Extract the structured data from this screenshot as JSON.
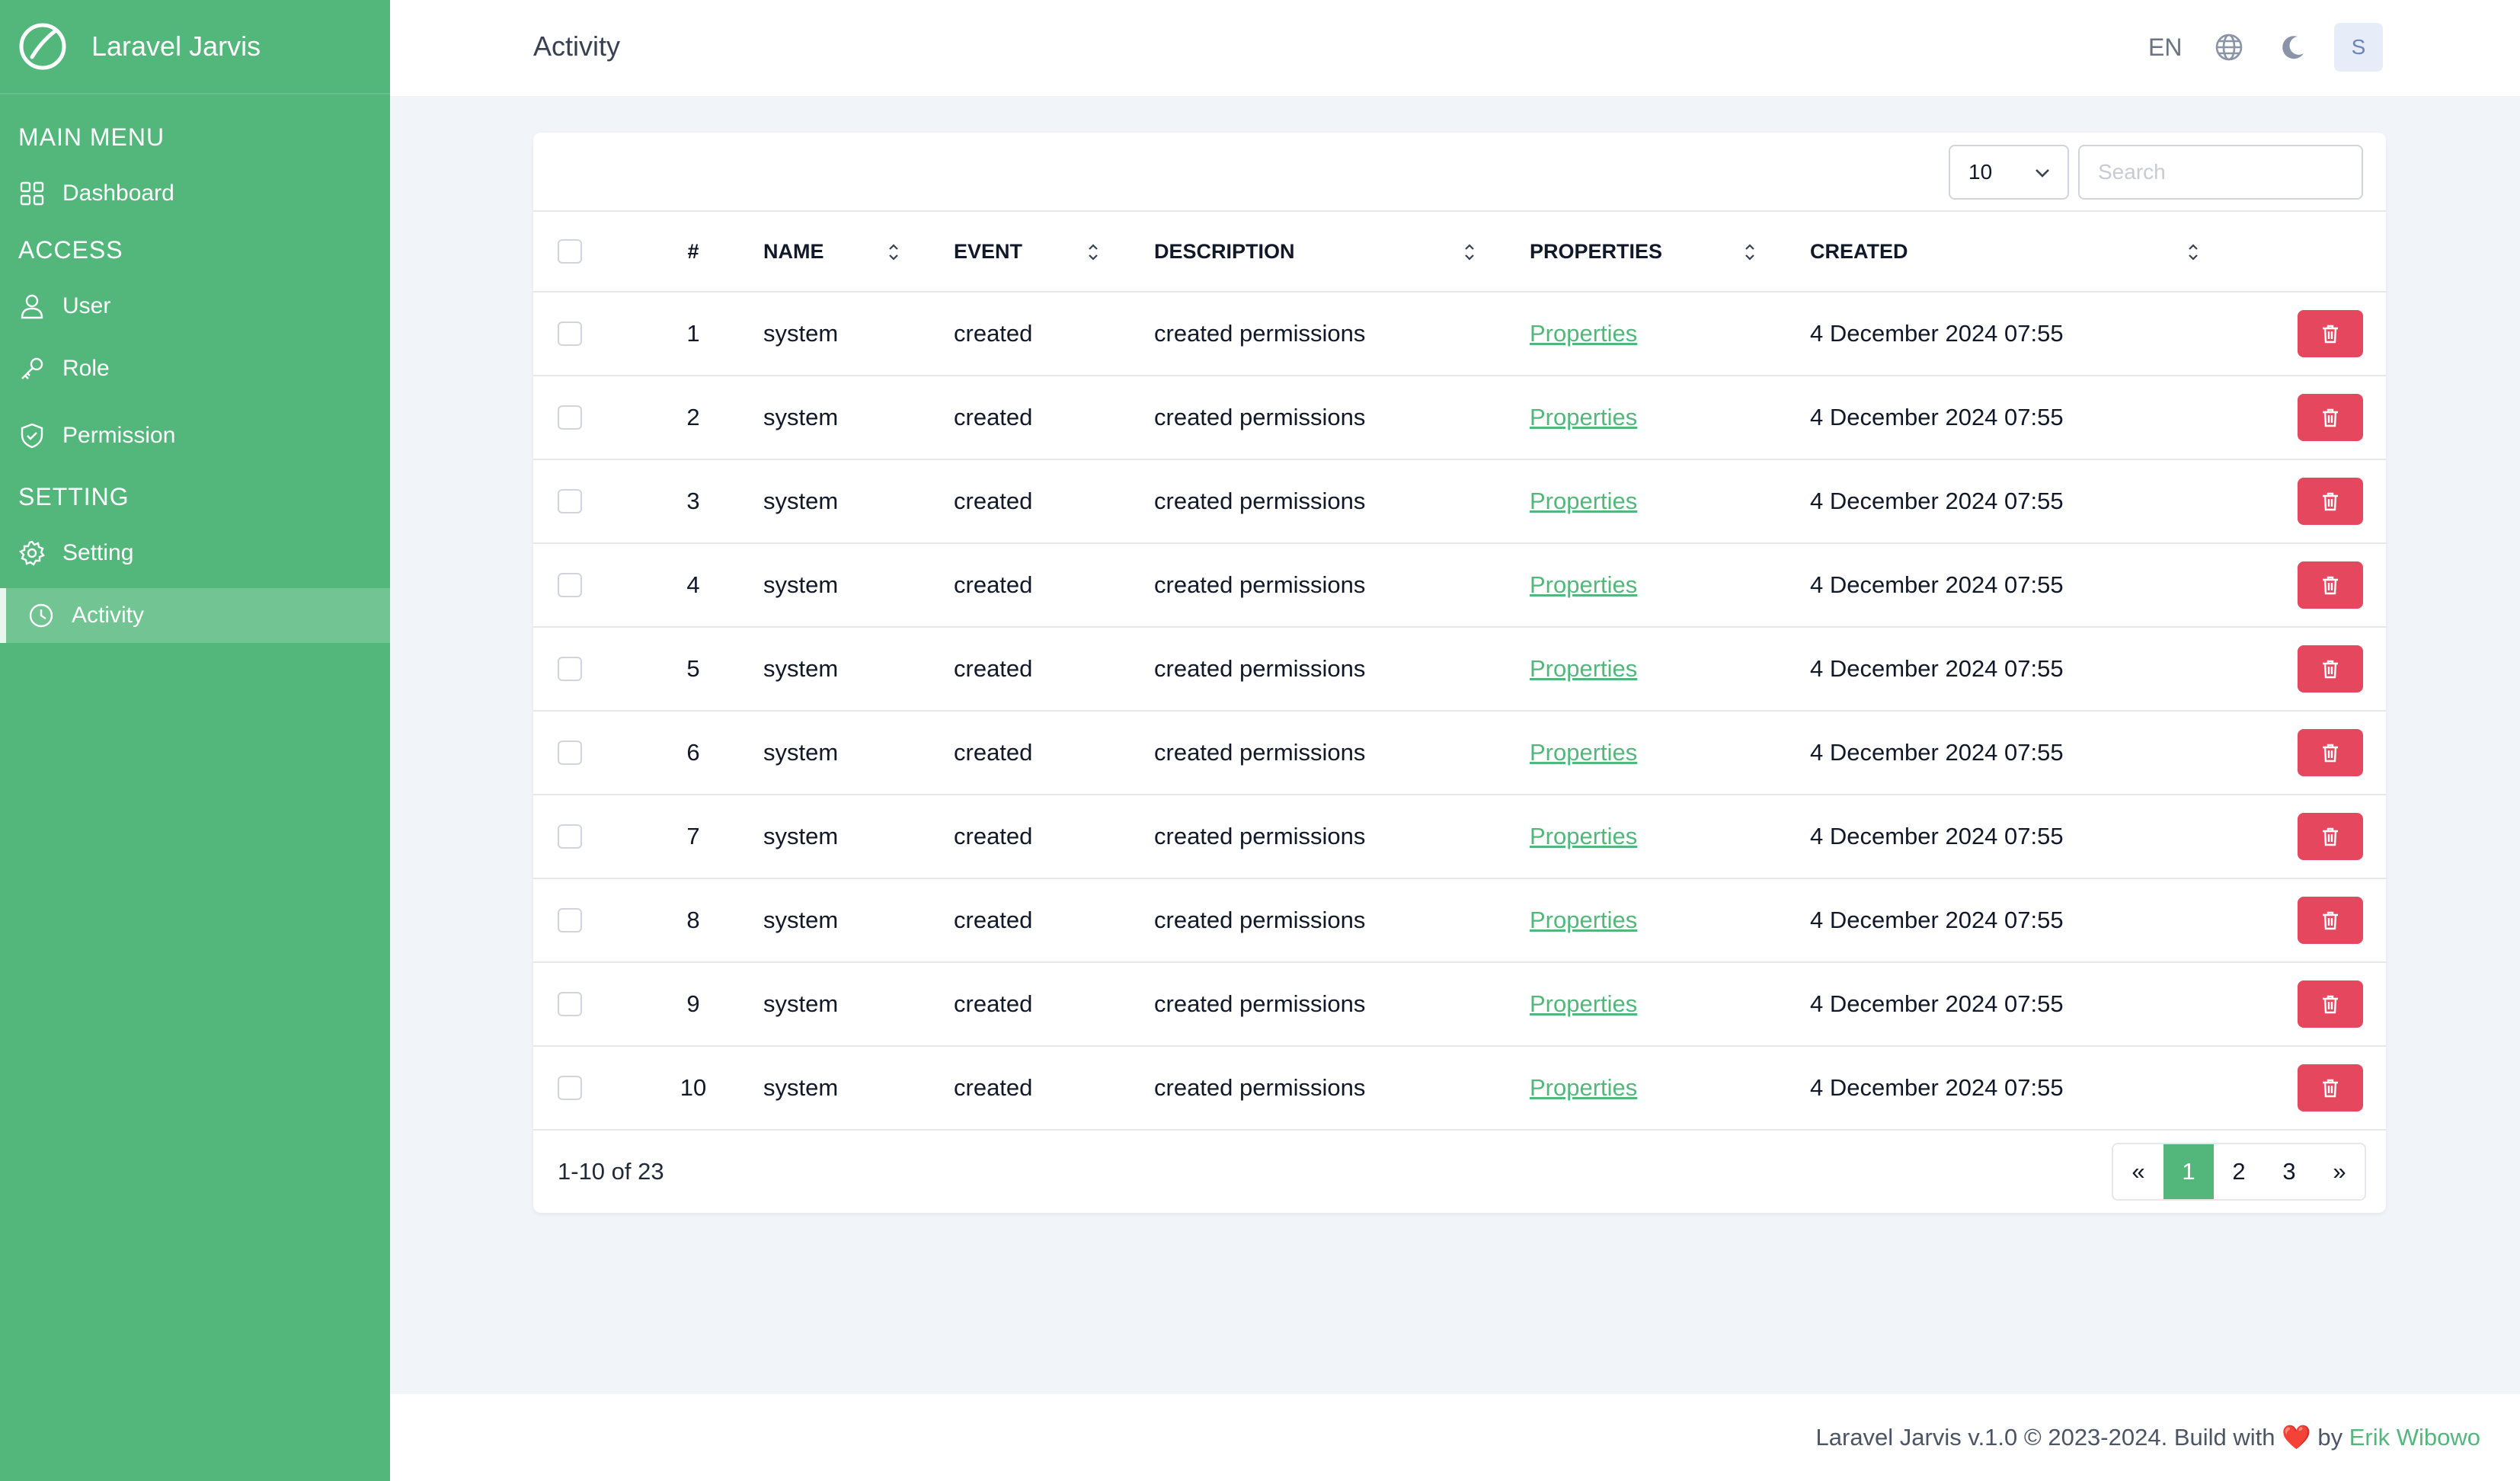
{
  "app": {
    "name": "Laravel Jarvis"
  },
  "sidebar": {
    "sections": [
      {
        "title": "MAIN MENU"
      },
      {
        "title": "ACCESS"
      },
      {
        "title": "SETTING"
      }
    ],
    "items": [
      {
        "label": "Dashboard",
        "icon": "grid-icon"
      },
      {
        "label": "User",
        "icon": "user-icon"
      },
      {
        "label": "Role",
        "icon": "key-icon"
      },
      {
        "label": "Permission",
        "icon": "shield-check-icon"
      },
      {
        "label": "Setting",
        "icon": "gear-icon"
      },
      {
        "label": "Activity",
        "icon": "clock-icon",
        "active": true
      }
    ]
  },
  "header": {
    "title": "Activity",
    "lang": "EN",
    "avatar_initial": "S"
  },
  "table": {
    "per_page": "10",
    "search_placeholder": "Search",
    "columns": [
      "#",
      "NAME",
      "EVENT",
      "DESCRIPTION",
      "PROPERTIES",
      "CREATED"
    ],
    "rows": [
      {
        "num": "1",
        "name": "system",
        "event": "created",
        "description": "created permissions",
        "properties": "Properties",
        "created": "4 December 2024 07:55"
      },
      {
        "num": "2",
        "name": "system",
        "event": "created",
        "description": "created permissions",
        "properties": "Properties",
        "created": "4 December 2024 07:55"
      },
      {
        "num": "3",
        "name": "system",
        "event": "created",
        "description": "created permissions",
        "properties": "Properties",
        "created": "4 December 2024 07:55"
      },
      {
        "num": "4",
        "name": "system",
        "event": "created",
        "description": "created permissions",
        "properties": "Properties",
        "created": "4 December 2024 07:55"
      },
      {
        "num": "5",
        "name": "system",
        "event": "created",
        "description": "created permissions",
        "properties": "Properties",
        "created": "4 December 2024 07:55"
      },
      {
        "num": "6",
        "name": "system",
        "event": "created",
        "description": "created permissions",
        "properties": "Properties",
        "created": "4 December 2024 07:55"
      },
      {
        "num": "7",
        "name": "system",
        "event": "created",
        "description": "created permissions",
        "properties": "Properties",
        "created": "4 December 2024 07:55"
      },
      {
        "num": "8",
        "name": "system",
        "event": "created",
        "description": "created permissions",
        "properties": "Properties",
        "created": "4 December 2024 07:55"
      },
      {
        "num": "9",
        "name": "system",
        "event": "created",
        "description": "created permissions",
        "properties": "Properties",
        "created": "4 December 2024 07:55"
      },
      {
        "num": "10",
        "name": "system",
        "event": "created",
        "description": "created permissions",
        "properties": "Properties",
        "created": "4 December 2024 07:55"
      }
    ],
    "count_text": "1-10 of 23",
    "pagination": {
      "prev": "«",
      "pages": [
        "1",
        "2",
        "3"
      ],
      "current": "1",
      "next": "»"
    }
  },
  "footer": {
    "text": "Laravel Jarvis v.1.0 © 2023-2024. Build with",
    "heart": "❤️",
    "by": "by",
    "author": "Erik Wibowo"
  },
  "colors": {
    "primary": "#53b77c",
    "danger": "#e5475e",
    "background": "#f1f4f9"
  }
}
